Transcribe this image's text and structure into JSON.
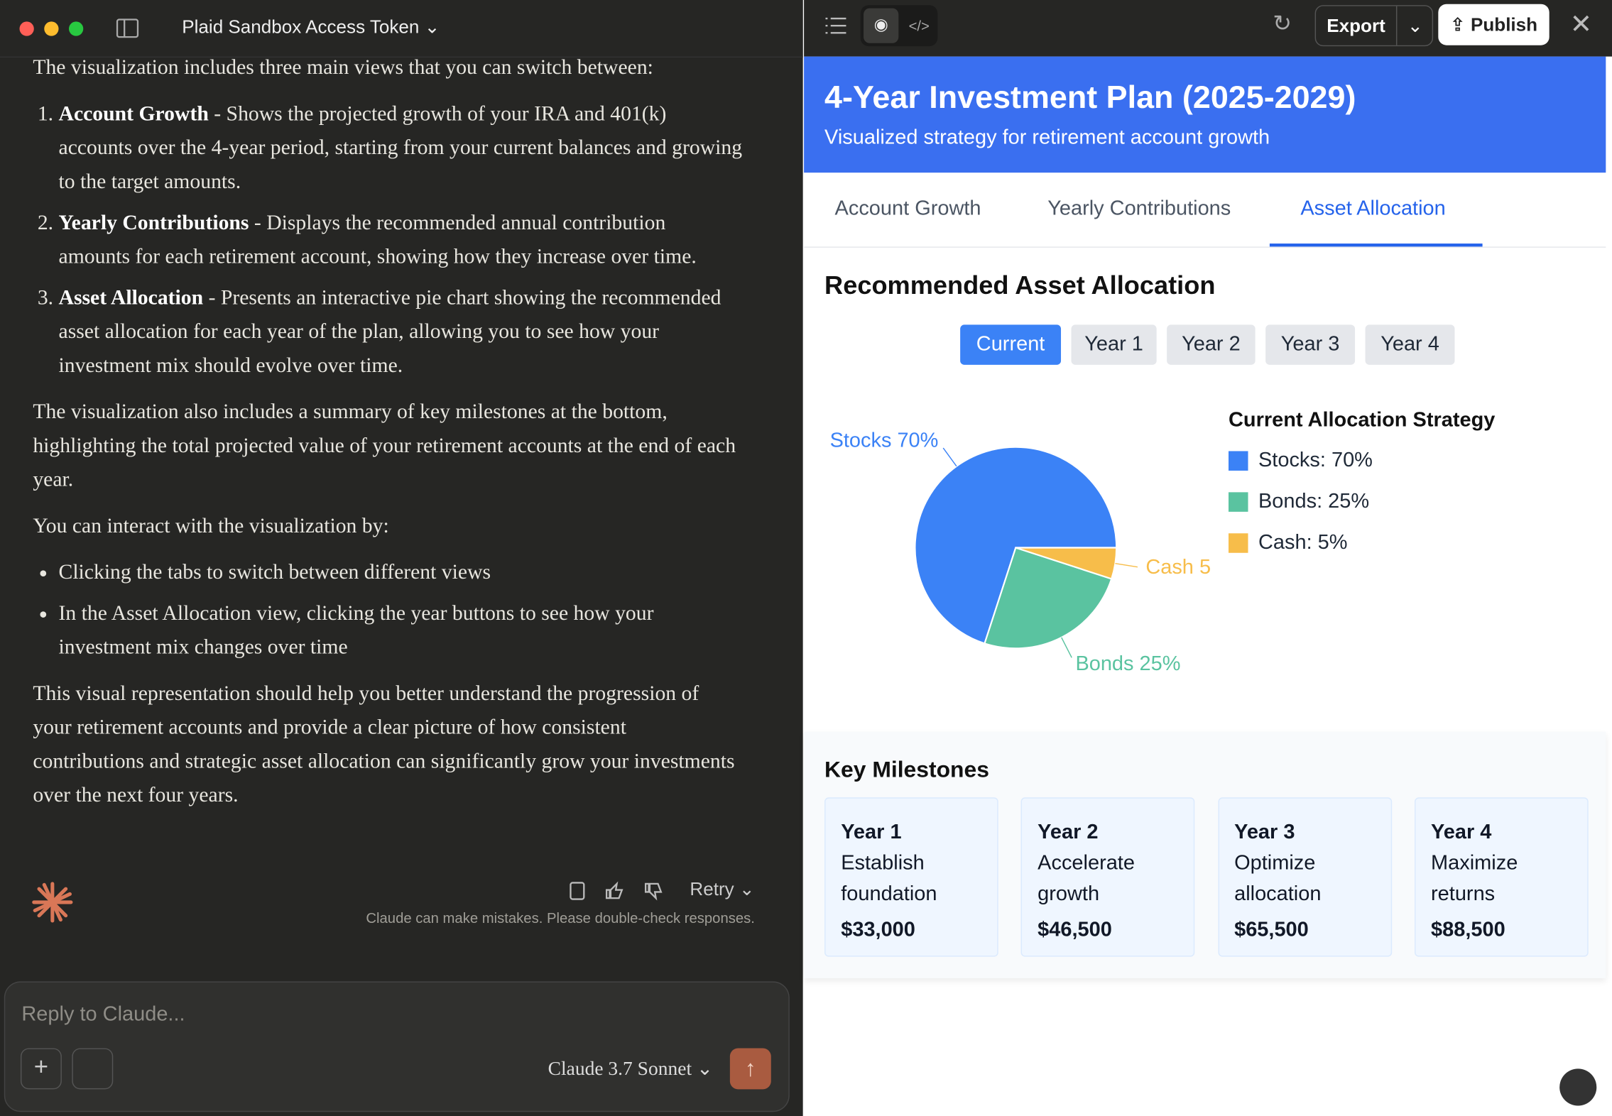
{
  "window": {
    "title": "Plaid Sandbox Access Token"
  },
  "chat": {
    "intro": "The visualization includes three main views that you can switch between:",
    "views": [
      {
        "name": "Account Growth",
        "text": "- Shows the projected growth of your IRA and 401(k) accounts over the 4-year period, starting from your current balances and growing to the target amounts."
      },
      {
        "name": "Yearly Contributions",
        "text": "- Displays the recommended annual contribution amounts for each retirement account, showing how they increase over time."
      },
      {
        "name": "Asset Allocation",
        "text": "- Presents an interactive pie chart showing the recommended asset allocation for each year of the plan, allowing you to see how your investment mix should evolve over time."
      }
    ],
    "summary": "The visualization also includes a summary of key milestones at the bottom, highlighting the total projected value of your retirement accounts at the end of each year.",
    "interact_intro": "You can interact with the visualization by:",
    "bullets": [
      "Clicking the tabs to switch between different views",
      "In the Asset Allocation view, clicking the year buttons to see how your investment mix changes over time"
    ],
    "closing": "This visual representation should help you better understand the progression of your retirement accounts and provide a clear picture of how consistent contributions and strategic asset allocation can significantly grow your investments over the next four years.",
    "retry": "Retry",
    "disclaimer": "Claude can make mistakes. Please double-check responses.",
    "placeholder": "Reply to Claude...",
    "model": "Claude 3.7 Sonnet"
  },
  "toolbar": {
    "export": "Export",
    "publish": "Publish"
  },
  "artifact": {
    "title": "4-Year Investment Plan (2025-2029)",
    "subtitle": "Visualized strategy for retirement account growth",
    "tabs": [
      "Account Growth",
      "Yearly Contributions",
      "Asset Allocation"
    ],
    "heading": "Recommended Asset Allocation",
    "year_buttons": [
      "Current",
      "Year 1",
      "Year 2",
      "Year 3",
      "Year 4"
    ],
    "milestones_heading": "Key Milestones",
    "milestones": [
      {
        "year": "Year 1",
        "text": "Establish foundation",
        "amount": "$33,000"
      },
      {
        "year": "Year 2",
        "text": "Accelerate growth",
        "amount": "$46,500"
      },
      {
        "year": "Year 3",
        "text": "Optimize allocation",
        "amount": "$65,500"
      },
      {
        "year": "Year 4",
        "text": "Maximize returns",
        "amount": "$88,500"
      }
    ]
  },
  "chart_data": {
    "type": "pie",
    "title": "Current Allocation Strategy",
    "values": [
      70,
      25,
      5
    ],
    "value_labels": [
      "Stocks 70%",
      "Bonds 25%",
      "Cash 5"
    ],
    "legend": [
      "Stocks: 70%",
      "Bonds: 25%",
      "Cash: 5%"
    ],
    "colors": [
      "#3b82f6",
      "#5ac3a0",
      "#f7bd4a"
    ]
  }
}
